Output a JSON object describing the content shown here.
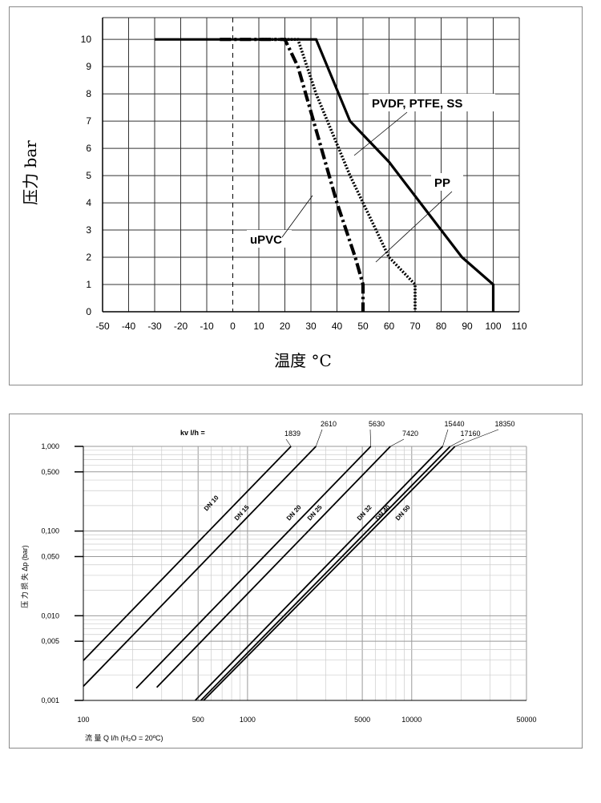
{
  "chart_data": [
    {
      "type": "line",
      "xlabel": "温度 °C",
      "ylabel": "压力 bar",
      "xlim": [
        -50,
        110
      ],
      "ylim": [
        0,
        10.8
      ],
      "x_ticks": [
        "-50",
        "-40",
        "-30",
        "-20",
        "-10",
        "0",
        "10",
        "20",
        "30",
        "40",
        "50",
        "60",
        "70",
        "80",
        "90",
        "100",
        "110"
      ],
      "y_ticks": [
        "0",
        "1",
        "2",
        "3",
        "4",
        "5",
        "6",
        "7",
        "8",
        "9",
        "10"
      ],
      "grid": true,
      "series": [
        {
          "name": "PVDF, PTFE, SS",
          "style": "solid",
          "color": "#000000",
          "points": [
            [
              -30,
              10
            ],
            [
              32,
              10
            ],
            [
              45,
              7
            ],
            [
              60,
              5.5
            ],
            [
              72,
              4
            ],
            [
              88,
              2
            ],
            [
              100,
              1
            ],
            [
              100,
              0
            ]
          ]
        },
        {
          "name": "PP",
          "style": "dotted",
          "color": "#000000",
          "points": [
            [
              10,
              10
            ],
            [
              25,
              10
            ],
            [
              32,
              8
            ],
            [
              45,
              5
            ],
            [
              60,
              2
            ],
            [
              70,
              1
            ],
            [
              70,
              0
            ]
          ]
        },
        {
          "name": "uPVC",
          "style": "dashdot",
          "color": "#000000",
          "points": [
            [
              -5,
              10
            ],
            [
              20,
              10
            ],
            [
              25,
              9
            ],
            [
              31,
              7
            ],
            [
              40,
              4
            ],
            [
              47,
              2
            ],
            [
              50,
              1
            ],
            [
              50,
              0
            ]
          ]
        }
      ]
    },
    {
      "type": "line",
      "xscale": "log",
      "yscale": "log",
      "xlabel": "流 量 Q l/h (H₂O = 20ºC)",
      "ylabel": "压 力 损 失 Δp (bar)",
      "xlim": [
        100,
        50000
      ],
      "ylim": [
        0.001,
        1.0
      ],
      "x_ticks": [
        "100",
        "500",
        "1000",
        "5000",
        "10000",
        "50000"
      ],
      "y_ticks": [
        "0,001",
        "0,005",
        "0,010",
        "0,050",
        "0,100",
        "0,500",
        "1,000"
      ],
      "kv_header": "kv l/h =",
      "grid": true,
      "series": [
        {
          "name": "DN 10",
          "kv": "1839",
          "x_start": 100,
          "x_end": 1839
        },
        {
          "name": "DN 15",
          "kv": "2610",
          "x_start": 100,
          "x_end": 2610
        },
        {
          "name": "DN 20",
          "kv": "5630",
          "x_start": 210,
          "x_end": 5630
        },
        {
          "name": "DN 25",
          "kv": "7420",
          "x_start": 280,
          "x_end": 7420
        },
        {
          "name": "DN 32",
          "kv": "15440",
          "x_start": 480,
          "x_end": 15440
        },
        {
          "name": "DN 40",
          "kv": "17160",
          "x_start": 520,
          "x_end": 17160
        },
        {
          "name": "DN 50",
          "kv": "18350",
          "x_start": 540,
          "x_end": 18350
        }
      ]
    }
  ]
}
